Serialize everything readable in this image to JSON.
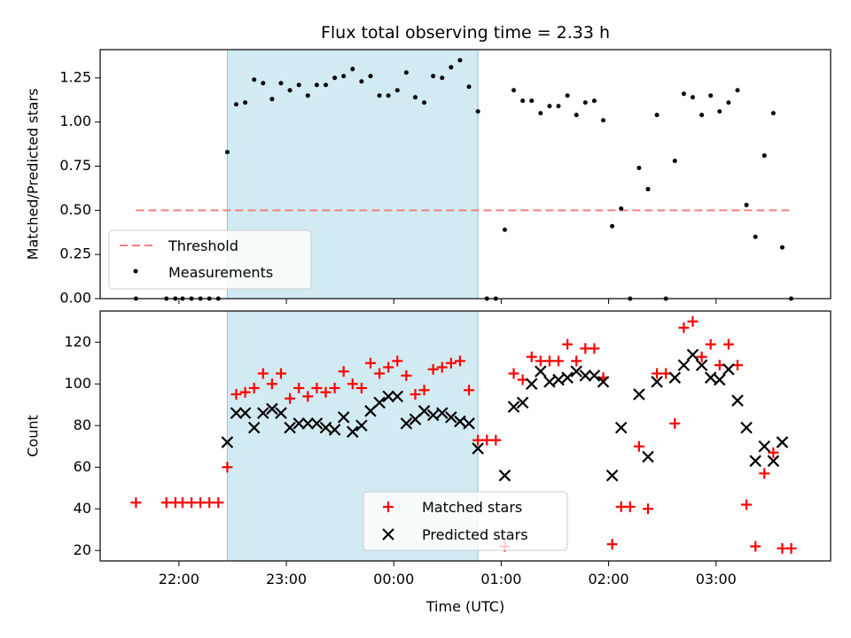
{
  "chart_data": [
    {
      "panel": "top",
      "type": "scatter",
      "title": "Flux total observing time = 2.33 h",
      "ylabel": "Matched/Predicted stars",
      "xlabel": "",
      "ylim": [
        0.0,
        1.41
      ],
      "yticks": [
        0.0,
        0.25,
        0.5,
        0.75,
        1.0,
        1.25
      ],
      "ytick_labels": [
        "0.00",
        "0.25",
        "0.50",
        "0.75",
        "1.00",
        "1.25"
      ],
      "grid": false,
      "legend": "lower-left",
      "threshold": {
        "name": "Threshold",
        "value": 0.5,
        "x_start": "21:36",
        "x_end": "03:42",
        "color": "#f08080"
      },
      "highlight": {
        "x_start": "22:27",
        "x_end": "00:47",
        "color": "#add8e6"
      },
      "series": [
        {
          "name": "Measurements",
          "color": "#000000",
          "points": [
            [
              "21:36",
              0.0
            ],
            [
              "21:53",
              0.0
            ],
            [
              "21:58",
              0.0
            ],
            [
              "22:02",
              0.0
            ],
            [
              "22:07",
              0.0
            ],
            [
              "22:12",
              0.0
            ],
            [
              "22:17",
              0.0
            ],
            [
              "22:22",
              0.0
            ],
            [
              "22:27",
              0.83
            ],
            [
              "22:32",
              1.1
            ],
            [
              "22:37",
              1.11
            ],
            [
              "22:42",
              1.24
            ],
            [
              "22:47",
              1.22
            ],
            [
              "22:52",
              1.13
            ],
            [
              "22:57",
              1.22
            ],
            [
              "23:02",
              1.18
            ],
            [
              "23:07",
              1.21
            ],
            [
              "23:12",
              1.15
            ],
            [
              "23:17",
              1.21
            ],
            [
              "23:22",
              1.21
            ],
            [
              "23:27",
              1.25
            ],
            [
              "23:32",
              1.26
            ],
            [
              "23:37",
              1.3
            ],
            [
              "23:42",
              1.23
            ],
            [
              "23:47",
              1.26
            ],
            [
              "23:52",
              1.15
            ],
            [
              "23:57",
              1.15
            ],
            [
              "00:02",
              1.18
            ],
            [
              "00:07",
              1.28
            ],
            [
              "00:12",
              1.14
            ],
            [
              "00:17",
              1.11
            ],
            [
              "00:22",
              1.26
            ],
            [
              "00:27",
              1.25
            ],
            [
              "00:32",
              1.31
            ],
            [
              "00:37",
              1.35
            ],
            [
              "00:42",
              1.2
            ],
            [
              "00:47",
              1.06
            ],
            [
              "00:52",
              0.0
            ],
            [
              "00:57",
              0.0
            ],
            [
              "01:02",
              0.39
            ],
            [
              "01:07",
              1.18
            ],
            [
              "01:12",
              1.12
            ],
            [
              "01:17",
              1.12
            ],
            [
              "01:22",
              1.05
            ],
            [
              "01:27",
              1.09
            ],
            [
              "01:32",
              1.09
            ],
            [
              "01:37",
              1.15
            ],
            [
              "01:42",
              1.04
            ],
            [
              "01:47",
              1.11
            ],
            [
              "01:52",
              1.12
            ],
            [
              "01:57",
              1.01
            ],
            [
              "02:02",
              0.41
            ],
            [
              "02:07",
              0.51
            ],
            [
              "02:12",
              0.0
            ],
            [
              "02:17",
              0.74
            ],
            [
              "02:22",
              0.62
            ],
            [
              "02:27",
              1.04
            ],
            [
              "02:32",
              0.0
            ],
            [
              "02:37",
              0.78
            ],
            [
              "02:42",
              1.16
            ],
            [
              "02:47",
              1.14
            ],
            [
              "02:52",
              1.04
            ],
            [
              "02:57",
              1.15
            ],
            [
              "03:02",
              1.06
            ],
            [
              "03:07",
              1.11
            ],
            [
              "03:12",
              1.18
            ],
            [
              "03:17",
              0.53
            ],
            [
              "03:22",
              0.35
            ],
            [
              "03:27",
              0.81
            ],
            [
              "03:32",
              1.05
            ],
            [
              "03:37",
              0.29
            ],
            [
              "03:42",
              0.0
            ]
          ]
        }
      ]
    },
    {
      "panel": "bottom",
      "type": "scatter",
      "title": "",
      "ylabel": "Count",
      "xlabel": "Time (UTC)",
      "ylim": [
        15,
        135
      ],
      "yticks": [
        20,
        40,
        60,
        80,
        100,
        120
      ],
      "ytick_labels": [
        "20",
        "40",
        "60",
        "80",
        "100",
        "120"
      ],
      "xlim": [
        "21:16",
        "04:04"
      ],
      "xticks": [
        "22:00",
        "23:00",
        "00:00",
        "01:00",
        "02:00",
        "03:00"
      ],
      "xtick_labels": [
        "22:00",
        "23:00",
        "00:00",
        "01:00",
        "02:00",
        "03:00"
      ],
      "grid": false,
      "legend": "lower-center",
      "highlight": {
        "x_start": "22:27",
        "x_end": "00:47",
        "color": "#add8e6"
      },
      "series": [
        {
          "name": "Matched stars",
          "marker": "plus",
          "color": "#ff0000",
          "points": [
            [
              "21:36",
              43
            ],
            [
              "21:53",
              43
            ],
            [
              "21:58",
              43
            ],
            [
              "22:02",
              43
            ],
            [
              "22:07",
              43
            ],
            [
              "22:12",
              43
            ],
            [
              "22:17",
              43
            ],
            [
              "22:22",
              43
            ],
            [
              "22:27",
              60
            ],
            [
              "22:32",
              95
            ],
            [
              "22:37",
              96
            ],
            [
              "22:42",
              98
            ],
            [
              "22:47",
              105
            ],
            [
              "22:52",
              100
            ],
            [
              "22:57",
              105
            ],
            [
              "23:02",
              93
            ],
            [
              "23:07",
              98
            ],
            [
              "23:12",
              94
            ],
            [
              "23:17",
              98
            ],
            [
              "23:22",
              96
            ],
            [
              "23:27",
              98
            ],
            [
              "23:32",
              106
            ],
            [
              "23:37",
              100
            ],
            [
              "23:42",
              98
            ],
            [
              "23:47",
              110
            ],
            [
              "23:52",
              105
            ],
            [
              "23:57",
              108
            ],
            [
              "00:02",
              111
            ],
            [
              "00:07",
              104
            ],
            [
              "00:12",
              95
            ],
            [
              "00:17",
              97
            ],
            [
              "00:22",
              107
            ],
            [
              "00:27",
              108
            ],
            [
              "00:32",
              110
            ],
            [
              "00:37",
              111
            ],
            [
              "00:42",
              97
            ],
            [
              "00:47",
              73
            ],
            [
              "00:52",
              73
            ],
            [
              "00:57",
              73
            ],
            [
              "01:02",
              22
            ],
            [
              "01:07",
              105
            ],
            [
              "01:12",
              102
            ],
            [
              "01:17",
              113
            ],
            [
              "01:22",
              111
            ],
            [
              "01:27",
              111
            ],
            [
              "01:32",
              111
            ],
            [
              "01:37",
              119
            ],
            [
              "01:42",
              111
            ],
            [
              "01:47",
              117
            ],
            [
              "01:52",
              117
            ],
            [
              "01:57",
              103
            ],
            [
              "02:02",
              23
            ],
            [
              "02:07",
              41
            ],
            [
              "02:12",
              41
            ],
            [
              "02:17",
              70
            ],
            [
              "02:22",
              40
            ],
            [
              "02:27",
              105
            ],
            [
              "02:32",
              105
            ],
            [
              "02:37",
              81
            ],
            [
              "02:42",
              127
            ],
            [
              "02:47",
              130
            ],
            [
              "02:52",
              113
            ],
            [
              "02:57",
              119
            ],
            [
              "03:02",
              109
            ],
            [
              "03:07",
              119
            ],
            [
              "03:12",
              109
            ],
            [
              "03:17",
              42
            ],
            [
              "03:22",
              22
            ],
            [
              "03:27",
              57
            ],
            [
              "03:32",
              67
            ],
            [
              "03:37",
              21
            ],
            [
              "03:42",
              21
            ]
          ]
        },
        {
          "name": "Predicted stars",
          "marker": "x",
          "color": "#000000",
          "points": [
            [
              "22:27",
              72
            ],
            [
              "22:32",
              86
            ],
            [
              "22:37",
              86
            ],
            [
              "22:42",
              79
            ],
            [
              "22:47",
              86
            ],
            [
              "22:52",
              88
            ],
            [
              "22:57",
              86
            ],
            [
              "23:02",
              79
            ],
            [
              "23:07",
              81
            ],
            [
              "23:12",
              81
            ],
            [
              "23:17",
              81
            ],
            [
              "23:22",
              79
            ],
            [
              "23:27",
              78
            ],
            [
              "23:32",
              84
            ],
            [
              "23:37",
              77
            ],
            [
              "23:42",
              80
            ],
            [
              "23:47",
              87
            ],
            [
              "23:52",
              91
            ],
            [
              "23:57",
              94
            ],
            [
              "00:02",
              94
            ],
            [
              "00:07",
              81
            ],
            [
              "00:12",
              83
            ],
            [
              "00:17",
              87
            ],
            [
              "00:22",
              85
            ],
            [
              "00:27",
              86
            ],
            [
              "00:32",
              84
            ],
            [
              "00:37",
              82
            ],
            [
              "00:42",
              81
            ],
            [
              "00:47",
              69
            ],
            [
              "01:02",
              56
            ],
            [
              "01:07",
              89
            ],
            [
              "01:12",
              91
            ],
            [
              "01:17",
              100
            ],
            [
              "01:22",
              106
            ],
            [
              "01:27",
              101
            ],
            [
              "01:32",
              102
            ],
            [
              "01:37",
              103
            ],
            [
              "01:42",
              106
            ],
            [
              "01:47",
              104
            ],
            [
              "01:52",
              104
            ],
            [
              "01:57",
              101
            ],
            [
              "02:02",
              56
            ],
            [
              "02:07",
              79
            ],
            [
              "02:17",
              95
            ],
            [
              "02:22",
              65
            ],
            [
              "02:27",
              101
            ],
            [
              "02:37",
              103
            ],
            [
              "02:42",
              109
            ],
            [
              "02:47",
              114
            ],
            [
              "02:52",
              109
            ],
            [
              "02:57",
              103
            ],
            [
              "03:02",
              102
            ],
            [
              "03:07",
              107
            ],
            [
              "03:12",
              92
            ],
            [
              "03:17",
              79
            ],
            [
              "03:22",
              63
            ],
            [
              "03:27",
              70
            ],
            [
              "03:32",
              63
            ],
            [
              "03:37",
              72
            ]
          ]
        }
      ]
    }
  ]
}
